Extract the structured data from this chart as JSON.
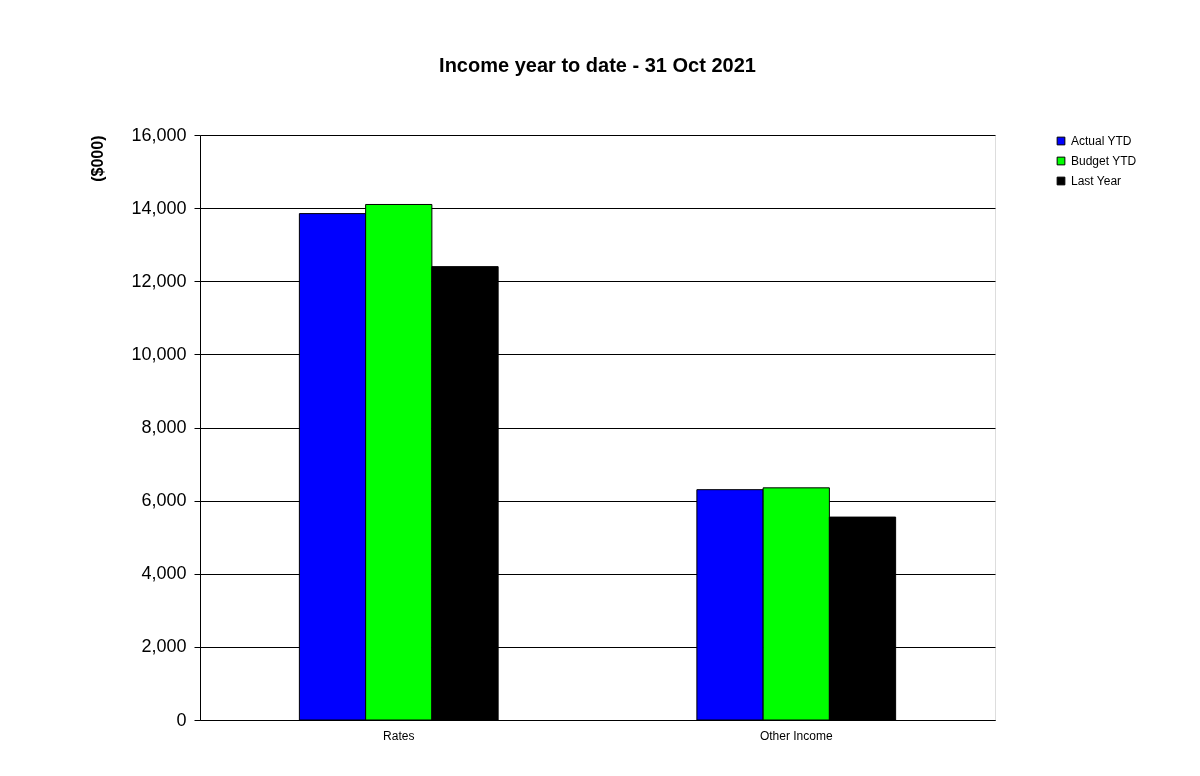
{
  "chart_data": {
    "type": "bar",
    "title": "Income year to date - 31 Oct 2021",
    "ylabel": "($000)",
    "categories": [
      "Rates",
      "Other Income"
    ],
    "series": [
      {
        "name": "Actual YTD",
        "color": "#0000ff",
        "values": [
          13850,
          6300
        ]
      },
      {
        "name": "Budget YTD",
        "color": "#00ff00",
        "values": [
          14100,
          6350
        ]
      },
      {
        "name": "Last Year",
        "color": "#000000",
        "values": [
          12400,
          5550
        ]
      }
    ],
    "ylim": [
      0,
      16000
    ],
    "yticks": [
      0,
      {
        "value": 2000,
        "label": "2,000"
      },
      {
        "value": 4000,
        "label": "4,000"
      },
      {
        "value": 6000,
        "label": "6,000"
      },
      {
        "value": 8000,
        "label": "8,000"
      },
      {
        "value": 10000,
        "label": "10,000"
      },
      {
        "value": 12000,
        "label": "12,000"
      },
      {
        "value": 14000,
        "label": "14,000"
      },
      {
        "value": 16000,
        "label": "16,000"
      }
    ],
    "grid": "y",
    "legend": "right"
  }
}
